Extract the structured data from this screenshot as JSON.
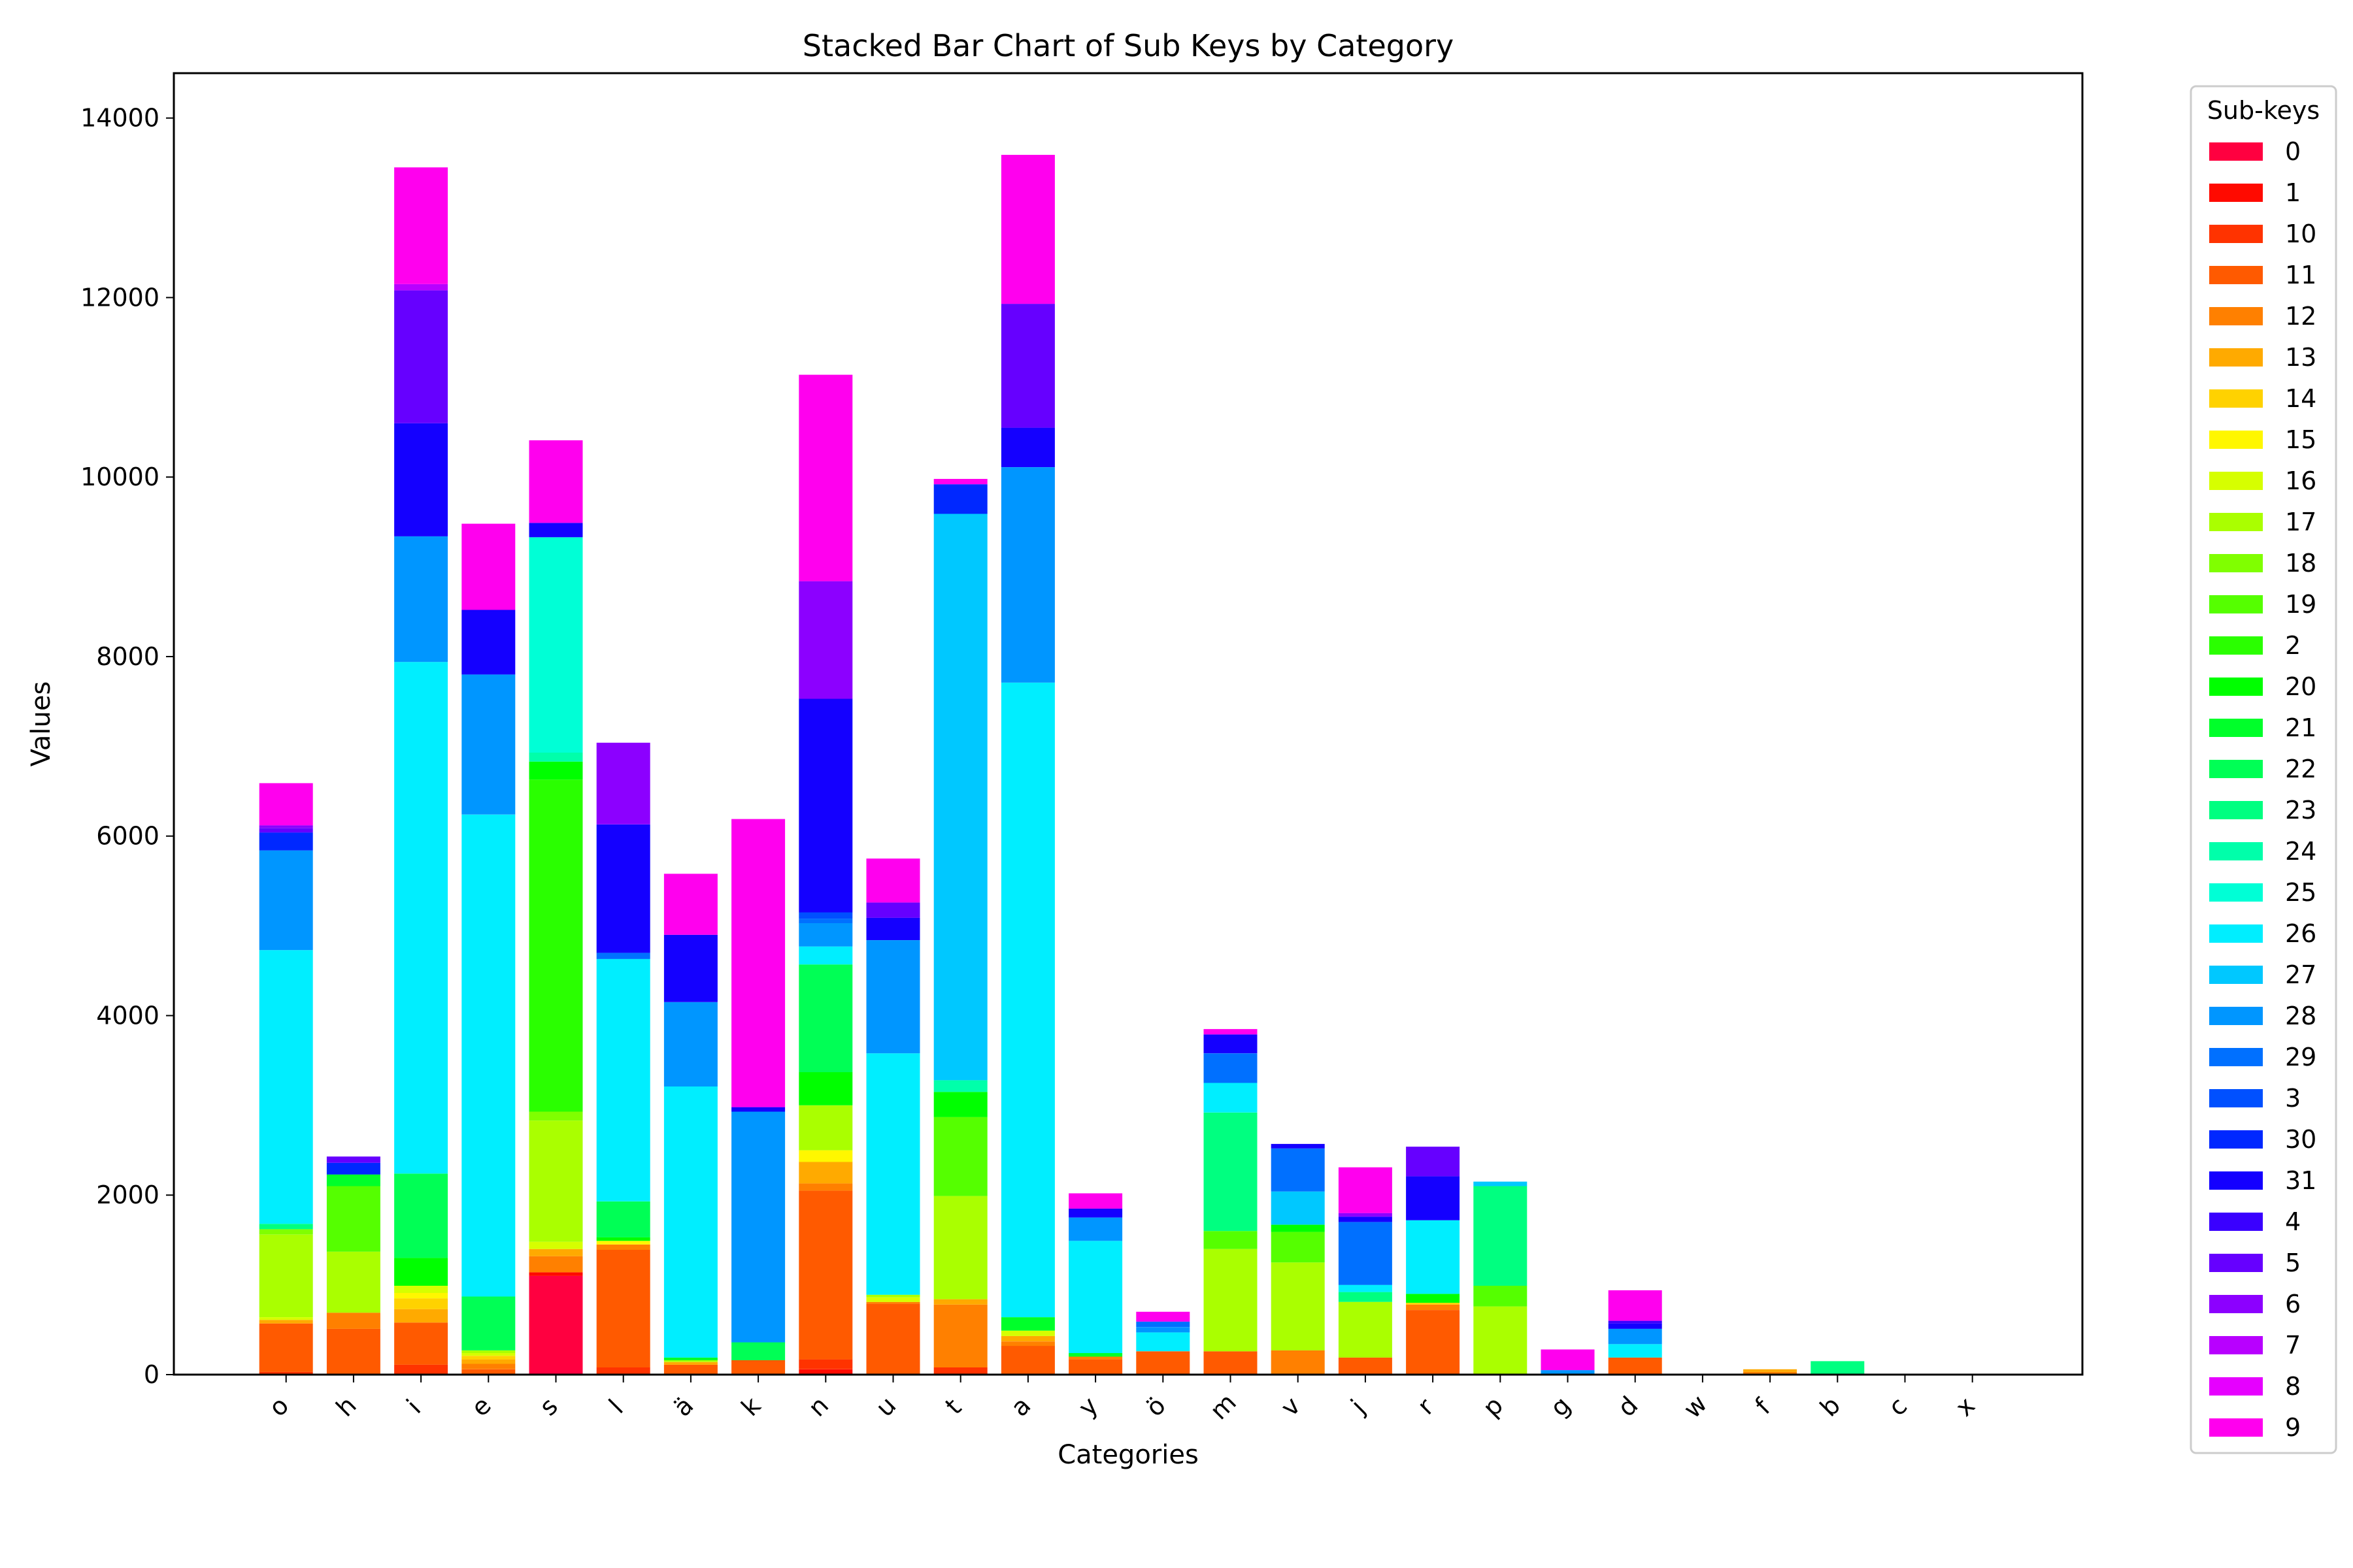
{
  "chart_data": {
    "type": "bar",
    "stacked": true,
    "title": "Stacked Bar Chart of Sub Keys by Category",
    "xlabel": "Categories",
    "ylabel": "Values",
    "ylim": [
      0,
      14500
    ],
    "yticks": [
      0,
      2000,
      4000,
      6000,
      8000,
      10000,
      12000,
      14000
    ],
    "grid": false,
    "legend": {
      "title": "Sub-keys",
      "placement": "outside-right"
    },
    "categories": [
      "o",
      "h",
      "i",
      "e",
      "s",
      "l",
      "ä",
      "k",
      "n",
      "u",
      "t",
      "a",
      "y",
      "ö",
      "m",
      "v",
      "j",
      "r",
      "p",
      "g",
      "d",
      "w",
      "f",
      "b",
      "c",
      "x"
    ],
    "series": [
      {
        "name": "0",
        "color": "#ff0040",
        "values": [
          0,
          0,
          0,
          0,
          1100,
          0,
          0,
          0,
          0,
          0,
          0,
          0,
          0,
          0,
          0,
          0,
          0,
          0,
          0,
          0,
          0,
          0,
          0,
          0,
          0,
          0
        ]
      },
      {
        "name": "1",
        "color": "#ff0a00",
        "values": [
          0,
          0,
          0,
          0,
          40,
          0,
          0,
          0,
          60,
          0,
          0,
          0,
          0,
          0,
          0,
          0,
          0,
          0,
          0,
          0,
          0,
          0,
          0,
          0,
          0,
          0
        ]
      },
      {
        "name": "10",
        "color": "#ff3300",
        "values": [
          30,
          0,
          110,
          0,
          0,
          80,
          0,
          0,
          110,
          0,
          80,
          0,
          0,
          0,
          0,
          0,
          0,
          0,
          0,
          0,
          0,
          0,
          0,
          0,
          0,
          0
        ]
      },
      {
        "name": "11",
        "color": "#ff5a00",
        "values": [
          540,
          510,
          470,
          60,
          0,
          1310,
          110,
          160,
          1880,
          790,
          0,
          320,
          170,
          260,
          260,
          0,
          190,
          720,
          0,
          0,
          190,
          0,
          0,
          0,
          0,
          0
        ]
      },
      {
        "name": "12",
        "color": "#ff8000",
        "values": [
          0,
          180,
          0,
          60,
          180,
          60,
          0,
          0,
          80,
          20,
          700,
          50,
          30,
          0,
          0,
          270,
          0,
          60,
          0,
          0,
          0,
          0,
          30,
          0,
          0,
          0
        ]
      },
      {
        "name": "13",
        "color": "#ffaa00",
        "values": [
          40,
          0,
          150,
          50,
          80,
          0,
          30,
          0,
          240,
          0,
          60,
          60,
          0,
          0,
          0,
          0,
          0,
          0,
          0,
          0,
          0,
          0,
          30,
          0,
          0,
          0
        ]
      },
      {
        "name": "14",
        "color": "#ffd200",
        "values": [
          0,
          0,
          120,
          40,
          0,
          0,
          0,
          0,
          0,
          0,
          0,
          0,
          0,
          0,
          0,
          0,
          0,
          20,
          0,
          0,
          0,
          0,
          0,
          0,
          0,
          0
        ]
      },
      {
        "name": "15",
        "color": "#fff700",
        "values": [
          0,
          0,
          60,
          0,
          0,
          40,
          0,
          0,
          130,
          0,
          0,
          0,
          0,
          0,
          0,
          0,
          0,
          0,
          0,
          0,
          0,
          0,
          0,
          0,
          0,
          0
        ]
      },
      {
        "name": "16",
        "color": "#d6ff00",
        "values": [
          30,
          0,
          80,
          30,
          80,
          0,
          0,
          0,
          0,
          50,
          0,
          60,
          0,
          0,
          0,
          0,
          0,
          0,
          0,
          0,
          0,
          0,
          0,
          0,
          0,
          0
        ]
      },
      {
        "name": "17",
        "color": "#aaff00",
        "values": [
          920,
          680,
          0,
          30,
          1350,
          0,
          20,
          0,
          500,
          30,
          1150,
          0,
          0,
          0,
          1140,
          980,
          620,
          0,
          760,
          0,
          0,
          0,
          0,
          0,
          0,
          0
        ]
      },
      {
        "name": "18",
        "color": "#80ff00",
        "values": [
          60,
          0,
          0,
          0,
          100,
          0,
          0,
          0,
          0,
          0,
          0,
          0,
          0,
          0,
          0,
          0,
          0,
          0,
          0,
          0,
          0,
          0,
          0,
          0,
          0,
          0
        ]
      },
      {
        "name": "19",
        "color": "#55ff00",
        "values": [
          0,
          730,
          0,
          0,
          0,
          0,
          0,
          0,
          0,
          0,
          880,
          0,
          0,
          0,
          200,
          340,
          0,
          0,
          230,
          0,
          0,
          0,
          0,
          0,
          0,
          0
        ]
      },
      {
        "name": "2",
        "color": "#2aff00",
        "values": [
          0,
          0,
          0,
          0,
          3700,
          0,
          0,
          0,
          0,
          0,
          0,
          0,
          0,
          0,
          0,
          0,
          0,
          0,
          0,
          0,
          0,
          0,
          0,
          0,
          0,
          0
        ]
      },
      {
        "name": "20",
        "color": "#00ff00",
        "values": [
          0,
          0,
          310,
          0,
          200,
          40,
          0,
          0,
          370,
          0,
          280,
          0,
          0,
          0,
          0,
          80,
          0,
          100,
          0,
          0,
          0,
          0,
          0,
          0,
          0,
          0
        ]
      },
      {
        "name": "21",
        "color": "#00ff2a",
        "values": [
          0,
          130,
          0,
          0,
          0,
          0,
          30,
          0,
          0,
          0,
          0,
          150,
          40,
          0,
          0,
          0,
          0,
          0,
          0,
          0,
          0,
          0,
          0,
          0,
          0,
          0
        ]
      },
      {
        "name": "22",
        "color": "#00ff55",
        "values": [
          0,
          0,
          940,
          600,
          0,
          400,
          0,
          200,
          1200,
          0,
          0,
          0,
          0,
          0,
          0,
          0,
          0,
          0,
          0,
          0,
          0,
          0,
          0,
          0,
          0,
          0
        ]
      },
      {
        "name": "23",
        "color": "#00ff80",
        "values": [
          60,
          0,
          0,
          0,
          0,
          0,
          0,
          0,
          0,
          0,
          0,
          0,
          0,
          0,
          1320,
          0,
          110,
          0,
          1110,
          0,
          0,
          0,
          0,
          150,
          0,
          0
        ]
      },
      {
        "name": "24",
        "color": "#00ffaa",
        "values": [
          0,
          0,
          0,
          0,
          100,
          0,
          0,
          0,
          0,
          0,
          130,
          0,
          0,
          0,
          0,
          0,
          0,
          0,
          0,
          0,
          0,
          0,
          0,
          0,
          0,
          0
        ]
      },
      {
        "name": "25",
        "color": "#00ffd6",
        "values": [
          0,
          0,
          0,
          0,
          2400,
          0,
          0,
          0,
          0,
          0,
          0,
          0,
          0,
          0,
          0,
          0,
          0,
          0,
          0,
          0,
          0,
          0,
          0,
          0,
          0,
          0
        ]
      },
      {
        "name": "26",
        "color": "#00eeff",
        "values": [
          3050,
          0,
          5700,
          5370,
          0,
          2700,
          3020,
          0,
          200,
          2690,
          0,
          7070,
          1250,
          210,
          330,
          0,
          80,
          820,
          0,
          0,
          150,
          0,
          0,
          0,
          0,
          0
        ]
      },
      {
        "name": "27",
        "color": "#00c8ff",
        "values": [
          0,
          0,
          0,
          0,
          0,
          0,
          0,
          0,
          0,
          0,
          6310,
          0,
          0,
          0,
          0,
          370,
          0,
          0,
          50,
          0,
          0,
          0,
          0,
          0,
          0,
          0
        ]
      },
      {
        "name": "28",
        "color": "#0096ff",
        "values": [
          1110,
          0,
          1400,
          1560,
          0,
          0,
          940,
          2570,
          260,
          1260,
          0,
          2400,
          260,
          60,
          0,
          0,
          0,
          0,
          0,
          50,
          170,
          0,
          0,
          0,
          0,
          0
        ]
      },
      {
        "name": "29",
        "color": "#0070ff",
        "values": [
          0,
          0,
          0,
          0,
          0,
          70,
          0,
          0,
          50,
          0,
          0,
          0,
          0,
          60,
          330,
          480,
          700,
          0,
          0,
          0,
          0,
          0,
          0,
          0,
          0,
          0
        ]
      },
      {
        "name": "3",
        "color": "#0050ff",
        "values": [
          0,
          0,
          0,
          0,
          0,
          0,
          0,
          0,
          70,
          0,
          0,
          0,
          0,
          0,
          0,
          0,
          0,
          0,
          0,
          0,
          0,
          0,
          0,
          0,
          0,
          0
        ]
      },
      {
        "name": "30",
        "color": "#0028ff",
        "values": [
          200,
          130,
          0,
          0,
          0,
          0,
          0,
          0,
          0,
          0,
          330,
          0,
          0,
          0,
          0,
          0,
          0,
          0,
          0,
          0,
          0,
          0,
          0,
          0,
          0,
          0
        ]
      },
      {
        "name": "31",
        "color": "#1400ff",
        "values": [
          0,
          0,
          1260,
          720,
          160,
          1430,
          750,
          50,
          2380,
          250,
          0,
          440,
          100,
          0,
          210,
          50,
          60,
          490,
          0,
          0,
          60,
          0,
          0,
          0,
          0,
          0
        ]
      },
      {
        "name": "4",
        "color": "#3a00ff",
        "values": [
          0,
          0,
          0,
          0,
          0,
          0,
          0,
          0,
          0,
          0,
          0,
          0,
          0,
          0,
          0,
          0,
          0,
          0,
          0,
          0,
          30,
          0,
          0,
          0,
          0,
          0
        ]
      },
      {
        "name": "5",
        "color": "#6600ff",
        "values": [
          50,
          70,
          1480,
          0,
          0,
          0,
          0,
          0,
          0,
          170,
          0,
          1380,
          0,
          0,
          0,
          0,
          0,
          330,
          0,
          0,
          0,
          0,
          0,
          0,
          0,
          0
        ]
      },
      {
        "name": "6",
        "color": "#8c00ff",
        "values": [
          30,
          0,
          0,
          0,
          0,
          910,
          0,
          0,
          1310,
          0,
          0,
          0,
          0,
          0,
          0,
          0,
          40,
          0,
          0,
          0,
          0,
          0,
          0,
          0,
          0,
          0
        ]
      },
      {
        "name": "7",
        "color": "#b800ff",
        "values": [
          0,
          0,
          70,
          0,
          0,
          0,
          0,
          0,
          0,
          0,
          0,
          0,
          0,
          0,
          0,
          0,
          0,
          0,
          0,
          0,
          0,
          0,
          0,
          0,
          0,
          0
        ]
      },
      {
        "name": "8",
        "color": "#e600ff",
        "values": [
          0,
          0,
          0,
          0,
          0,
          0,
          0,
          0,
          0,
          0,
          0,
          0,
          0,
          0,
          0,
          0,
          0,
          0,
          0,
          0,
          0,
          0,
          0,
          0,
          0,
          0
        ]
      },
      {
        "name": "9",
        "color": "#ff00ee",
        "values": [
          470,
          0,
          1300,
          960,
          920,
          0,
          680,
          3210,
          2300,
          490,
          60,
          1660,
          170,
          110,
          60,
          0,
          510,
          0,
          0,
          230,
          340,
          0,
          0,
          0,
          0,
          0
        ]
      }
    ]
  }
}
